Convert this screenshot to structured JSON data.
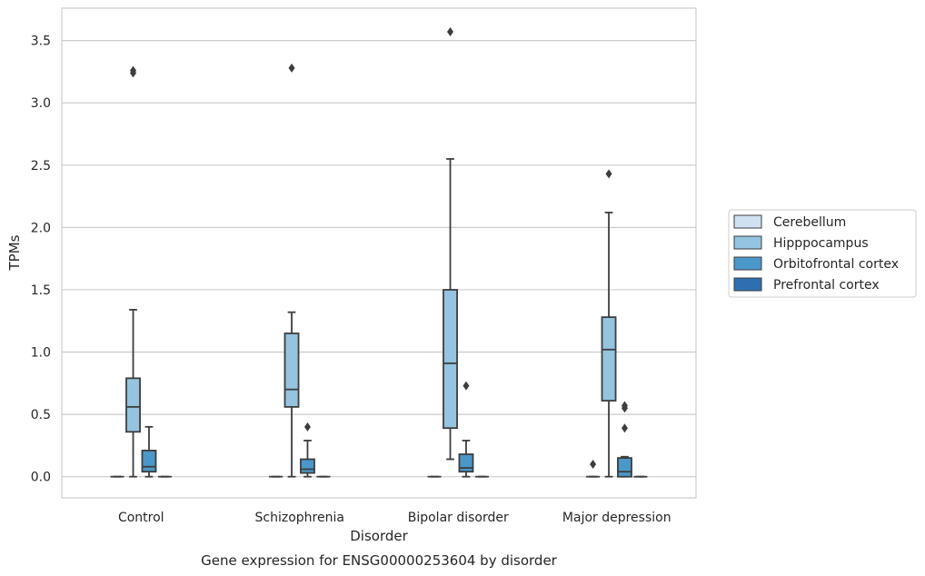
{
  "chart_data": {
    "type": "box",
    "xlabel": "Disorder",
    "ylabel": "TPMs",
    "caption": "Gene expression for ENSG00000253604 by disorder",
    "categories": [
      "Control",
      "Schizophrenia",
      "Bipolar disorder",
      "Major depression"
    ],
    "ylim": [
      -0.17,
      3.76
    ],
    "yticks": [
      0.0,
      0.5,
      1.0,
      1.5,
      2.0,
      2.5,
      3.0,
      3.5
    ],
    "ytick_labels": [
      "0.0",
      "0.5",
      "1.0",
      "1.5",
      "2.0",
      "2.5",
      "3.0",
      "3.5"
    ],
    "grid": "horizontal",
    "legend_position": "center-right",
    "series": [
      {
        "name": "Cerebellum",
        "color": "#d0e1f2",
        "boxes": [
          {
            "q1": 0,
            "median": 0,
            "q3": 0,
            "whisker_low": 0,
            "whisker_high": 0,
            "outliers": []
          },
          {
            "q1": 0,
            "median": 0,
            "q3": 0,
            "whisker_low": 0,
            "whisker_high": 0,
            "outliers": []
          },
          {
            "q1": 0,
            "median": 0,
            "q3": 0,
            "whisker_low": 0,
            "whisker_high": 0,
            "outliers": []
          },
          {
            "q1": 0,
            "median": 0,
            "q3": 0,
            "whisker_low": 0,
            "whisker_high": 0,
            "outliers": [
              0.1
            ]
          }
        ]
      },
      {
        "name": "Hipppocampus",
        "color": "#94c4df",
        "boxes": [
          {
            "q1": 0.36,
            "median": 0.56,
            "q3": 0.79,
            "whisker_low": 0,
            "whisker_high": 1.34,
            "outliers": [
              3.24,
              3.26
            ]
          },
          {
            "q1": 0.56,
            "median": 0.7,
            "q3": 1.15,
            "whisker_low": 0,
            "whisker_high": 1.32,
            "outliers": [
              3.28
            ]
          },
          {
            "q1": 0.39,
            "median": 0.91,
            "q3": 1.5,
            "whisker_low": 0.14,
            "whisker_high": 2.55,
            "outliers": [
              3.57
            ]
          },
          {
            "q1": 0.61,
            "median": 1.02,
            "q3": 1.28,
            "whisker_low": 0,
            "whisker_high": 2.12,
            "outliers": [
              2.43
            ]
          }
        ]
      },
      {
        "name": "Orbitofrontal cortex",
        "color": "#4a98c9",
        "boxes": [
          {
            "q1": 0.04,
            "median": 0.08,
            "q3": 0.21,
            "whisker_low": 0,
            "whisker_high": 0.4,
            "outliers": []
          },
          {
            "q1": 0.03,
            "median": 0.06,
            "q3": 0.14,
            "whisker_low": 0,
            "whisker_high": 0.29,
            "outliers": [
              0.4
            ]
          },
          {
            "q1": 0.04,
            "median": 0.07,
            "q3": 0.18,
            "whisker_low": 0,
            "whisker_high": 0.29,
            "outliers": [
              0.73
            ]
          },
          {
            "q1": 0,
            "median": 0.04,
            "q3": 0.15,
            "whisker_low": 0,
            "whisker_high": 0.16,
            "outliers": [
              0.39,
              0.55,
              0.57
            ]
          }
        ]
      },
      {
        "name": "Prefrontal cortex",
        "color": "#2e6fb1",
        "boxes": [
          {
            "q1": 0,
            "median": 0,
            "q3": 0,
            "whisker_low": 0,
            "whisker_high": 0,
            "outliers": []
          },
          {
            "q1": 0,
            "median": 0,
            "q3": 0,
            "whisker_low": 0,
            "whisker_high": 0,
            "outliers": []
          },
          {
            "q1": 0,
            "median": 0,
            "q3": 0,
            "whisker_low": 0,
            "whisker_high": 0,
            "outliers": []
          },
          {
            "q1": 0,
            "median": 0,
            "q3": 0,
            "whisker_low": 0,
            "whisker_high": 0,
            "outliers": []
          }
        ]
      }
    ]
  }
}
